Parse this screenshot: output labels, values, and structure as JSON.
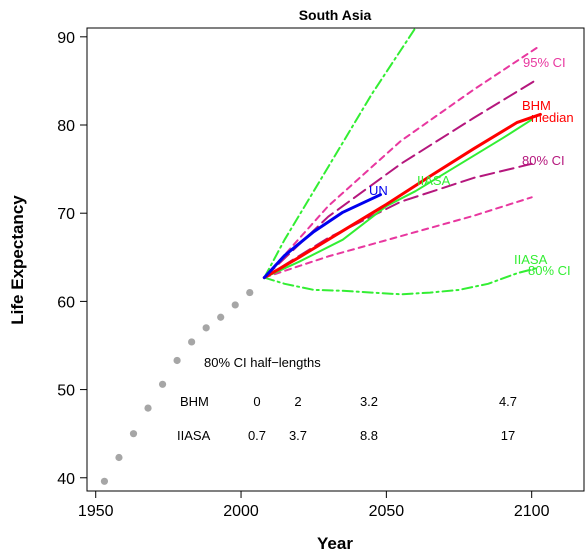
{
  "chart_data": {
    "type": "line",
    "title": "South Asia",
    "xlabel": "Year",
    "ylabel": "Life Expectancy",
    "xlim": [
      1947,
      2118
    ],
    "ylim": [
      38.5,
      91
    ],
    "x_ticks": [
      "1950",
      "2000",
      "2050",
      "2100"
    ],
    "y_ticks": [
      "40",
      "50",
      "60",
      "70",
      "80",
      "90"
    ],
    "grid": false,
    "colors": {
      "observed": "#a6a6a6",
      "un": "#0000ee",
      "bhm_median": "#ff0000",
      "bhm_80": "#b5177d",
      "bhm_95": "#e8379f",
      "iiasa": "#33ee33"
    },
    "series": [
      {
        "name": "",
        "style": "points",
        "x": [
          1953,
          1958,
          1963,
          1968,
          1973,
          1978,
          1983,
          1988,
          1993,
          1998,
          2003
        ],
        "y": [
          39.6,
          42.3,
          45.0,
          47.9,
          50.6,
          53.3,
          55.4,
          57.0,
          58.2,
          59.6,
          61.0
        ]
      },
      {
        "name": "UN",
        "style": "solid",
        "x": [
          2008,
          2015,
          2025,
          2035,
          2048
        ],
        "y": [
          62.7,
          65.2,
          67.9,
          70.1,
          72.1
        ]
      },
      {
        "name": "BHM median",
        "style": "solid",
        "x": [
          2008,
          2020,
          2035,
          2050,
          2065,
          2080,
          2095,
          2103
        ],
        "y": [
          62.7,
          65.0,
          68.0,
          71.0,
          74.2,
          77.3,
          80.3,
          81.2
        ]
      },
      {
        "name": "80% CI",
        "style": "dashed",
        "x": [
          2008,
          2030,
          2055,
          2080,
          2100
        ],
        "y": [
          62.7,
          67.2,
          71.3,
          74.0,
          75.6
        ]
      },
      {
        "name": "",
        "style": "dashed",
        "x": [
          2008,
          2030,
          2055,
          2080,
          2102
        ],
        "y": [
          62.7,
          69.6,
          75.6,
          80.8,
          85.2
        ]
      },
      {
        "name": "95% CI",
        "style": "dotted-dash",
        "x": [
          2008,
          2030,
          2055,
          2080,
          2102
        ],
        "y": [
          62.7,
          70.8,
          78.2,
          84.0,
          88.8
        ]
      },
      {
        "name": "",
        "style": "dotted-dash",
        "x": [
          2008,
          2030,
          2055,
          2080,
          2100
        ],
        "y": [
          62.7,
          65.1,
          67.4,
          69.7,
          71.8
        ]
      },
      {
        "name": "IIASA",
        "style": "solid",
        "x": [
          2008,
          2020,
          2035,
          2050,
          2060,
          2075,
          2090,
          2100
        ],
        "y": [
          62.7,
          64.5,
          67.0,
          70.8,
          72.5,
          75.5,
          78.5,
          80.6
        ]
      },
      {
        "name": "",
        "style": "dash-dot",
        "x": [
          2008,
          2015,
          2025,
          2035,
          2045,
          2055,
          2060
        ],
        "y": [
          62.7,
          67.0,
          72.5,
          78.0,
          83.5,
          88.5,
          91
        ]
      },
      {
        "name": "IIASA 80% CI",
        "style": "dash-dot",
        "x": [
          2008,
          2015,
          2025,
          2035,
          2045,
          2055,
          2065,
          2075,
          2085,
          2095,
          2102
        ],
        "y": [
          62.7,
          62.0,
          61.3,
          61.2,
          61.0,
          60.8,
          61.0,
          61.3,
          62.0,
          63.2,
          63.8
        ]
      }
    ],
    "annotations": {
      "un": "UN",
      "bhm": "BHM",
      "median": "median",
      "ci80": "80% CI",
      "ci95": "95% CI",
      "iiasa": "IIASA",
      "iiasa_low": "IIASA",
      "iiasa_low_ci": "80% CI"
    },
    "table": {
      "title": "80% CI half−lengths",
      "rows": [
        {
          "label": "BHM",
          "values": [
            "0",
            "2",
            "3.2",
            "4.7"
          ]
        },
        {
          "label": "IIASA",
          "values": [
            "0.7",
            "3.7",
            "8.8",
            "17"
          ]
        }
      ]
    }
  }
}
